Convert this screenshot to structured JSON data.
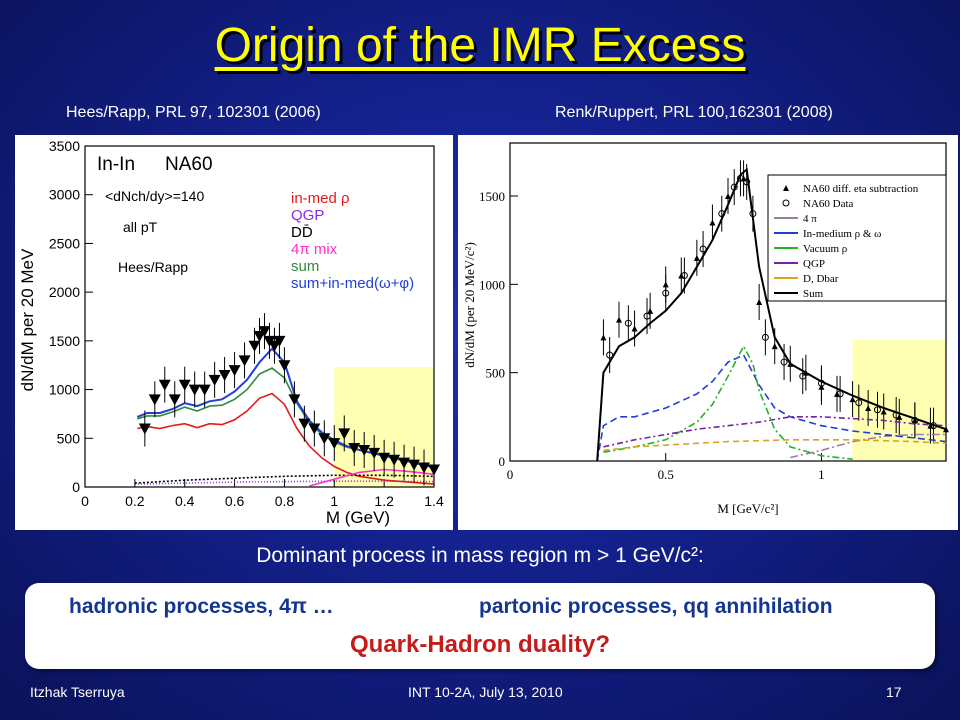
{
  "slide": {
    "title": "Origin of the IMR Excess",
    "ref_left": "Hees/Rapp, PRL 97, 102301 (2006)",
    "ref_right": "Renk/Ruppert, PRL 100,162301 (2008)",
    "subtitle": "Dominant process in mass region m > 1 GeV/c²:",
    "box_left": "hadronic processes, 4π …",
    "box_right": "partonic processes, qq annihilation",
    "box_question": "Quark-Hadron duality?",
    "footer_author": "Itzhak Tserruya",
    "footer_event": "INT 10-2A, July 13, 2010",
    "footer_page": "17"
  },
  "chart_data": [
    {
      "type": "line",
      "xlabel": "M (GeV)",
      "ylabel": "dN/dM per 20 MeV",
      "xlim": [
        0,
        1.4
      ],
      "ylim": [
        0,
        3500
      ],
      "x_ticks": [
        0,
        0.2,
        0.4,
        0.6,
        0.8,
        1,
        1.2,
        1.4
      ],
      "y_ticks": [
        0,
        500,
        1000,
        1500,
        2000,
        2500,
        3000,
        3500
      ],
      "annotations": [
        "In-In",
        "NA60",
        "<dNch/dy>=140",
        "all pT",
        "Hees/Rapp"
      ],
      "highlight_x": [
        1.0,
        1.4
      ],
      "series": [
        {
          "name": "in-med ρ",
          "color": "#e31a1a",
          "x": [
            0.21,
            0.25,
            0.3,
            0.35,
            0.4,
            0.45,
            0.5,
            0.55,
            0.6,
            0.65,
            0.7,
            0.75,
            0.8,
            0.85,
            0.9,
            0.95,
            1.0,
            1.05,
            1.1,
            1.15,
            1.2,
            1.3,
            1.4
          ],
          "y": [
            600,
            620,
            600,
            630,
            650,
            610,
            650,
            640,
            690,
            780,
            910,
            960,
            850,
            600,
            420,
            300,
            210,
            150,
            110,
            90,
            70,
            50,
            30
          ]
        },
        {
          "name": "QGP",
          "color": "#8a2be2",
          "x": [
            0.2,
            0.4,
            0.6,
            0.8,
            1.0,
            1.2,
            1.4
          ],
          "y": [
            30,
            40,
            50,
            55,
            60,
            60,
            55
          ]
        },
        {
          "name": "DD̄",
          "color": "#000000",
          "x": [
            0.2,
            0.4,
            0.6,
            0.8,
            1.0,
            1.2,
            1.4
          ],
          "y": [
            40,
            70,
            90,
            110,
            120,
            120,
            110
          ]
        },
        {
          "name": "4π mix",
          "color": "#ff33cc",
          "x": [
            0.9,
            1.0,
            1.1,
            1.2,
            1.3,
            1.4
          ],
          "y": [
            10,
            80,
            150,
            180,
            160,
            130
          ]
        },
        {
          "name": "sum",
          "color": "#2e8b3e",
          "x": [
            0.21,
            0.25,
            0.3,
            0.35,
            0.4,
            0.45,
            0.5,
            0.55,
            0.6,
            0.65,
            0.7,
            0.75,
            0.8,
            0.85,
            0.9,
            0.95,
            1.0,
            1.05,
            1.1,
            1.15,
            1.2,
            1.3,
            1.4
          ],
          "y": [
            700,
            730,
            730,
            770,
            820,
            780,
            830,
            840,
            900,
            1000,
            1160,
            1220,
            1120,
            860,
            660,
            540,
            460,
            410,
            380,
            350,
            320,
            260,
            200
          ]
        },
        {
          "name": "sum+in-med(ω+φ)",
          "color": "#1f3fd6",
          "x": [
            0.21,
            0.25,
            0.3,
            0.35,
            0.4,
            0.45,
            0.5,
            0.55,
            0.6,
            0.65,
            0.7,
            0.75,
            0.8,
            0.85,
            0.9,
            0.95,
            1.0,
            1.05,
            1.1,
            1.15,
            1.2,
            1.3,
            1.4
          ],
          "y": [
            720,
            760,
            760,
            800,
            860,
            830,
            880,
            900,
            980,
            1100,
            1280,
            1420,
            1280,
            880,
            680,
            560,
            480,
            420,
            380,
            350,
            320,
            260,
            200
          ]
        },
        {
          "name": "data",
          "color": "#000000",
          "marker": "triangle-down",
          "x": [
            0.24,
            0.28,
            0.32,
            0.36,
            0.4,
            0.44,
            0.48,
            0.52,
            0.56,
            0.6,
            0.64,
            0.68,
            0.7,
            0.72,
            0.74,
            0.76,
            0.78,
            0.8,
            0.84,
            0.88,
            0.92,
            0.96,
            1.0,
            1.04,
            1.08,
            1.12,
            1.16,
            1.2,
            1.24,
            1.28,
            1.32,
            1.36,
            1.4
          ],
          "y": [
            600,
            900,
            1050,
            900,
            1050,
            1000,
            1000,
            1100,
            1150,
            1200,
            1300,
            1450,
            1550,
            1600,
            1500,
            1450,
            1500,
            1250,
            900,
            650,
            600,
            500,
            450,
            550,
            400,
            380,
            350,
            300,
            280,
            250,
            230,
            200,
            180
          ]
        }
      ]
    },
    {
      "type": "line",
      "xlabel": "M [GeV/c²]",
      "ylabel": "dN/dM (per 20 MeV/c²)",
      "xlim": [
        0,
        1.4
      ],
      "ylim": [
        0,
        1800
      ],
      "x_ticks": [
        0,
        0.5,
        1
      ],
      "y_ticks": [
        0,
        500,
        1000,
        1500
      ],
      "highlight_x": [
        1.1,
        1.4
      ],
      "series": [
        {
          "name": "NA60 diff. eta subtraction",
          "color": "#000000",
          "marker": "triangle",
          "x": [
            0.3,
            0.35,
            0.4,
            0.45,
            0.5,
            0.55,
            0.6,
            0.65,
            0.7,
            0.75,
            0.8,
            0.85,
            0.9,
            0.95,
            1.0,
            1.05,
            1.1,
            1.15,
            1.2,
            1.25,
            1.3,
            1.35,
            1.4
          ],
          "y": [
            700,
            800,
            750,
            850,
            1000,
            1050,
            1150,
            1350,
            1500,
            1600,
            900,
            650,
            550,
            500,
            420,
            380,
            350,
            300,
            280,
            250,
            230,
            200,
            180
          ]
        },
        {
          "name": "NA60 Data",
          "color": "#000000",
          "marker": "circle",
          "x": [
            0.32,
            0.38,
            0.44,
            0.5,
            0.56,
            0.62,
            0.68,
            0.72,
            0.74,
            0.76,
            0.78,
            0.82,
            0.88,
            0.94,
            1.0,
            1.06,
            1.12,
            1.18,
            1.24,
            1.3,
            1.36
          ],
          "y": [
            600,
            780,
            820,
            950,
            1050,
            1200,
            1400,
            1550,
            1600,
            1580,
            1400,
            700,
            560,
            480,
            440,
            380,
            330,
            290,
            260,
            230,
            200
          ]
        },
        {
          "name": "4 π",
          "color": "#9a7fa0",
          "x": [
            0.9,
            1.0,
            1.1,
            1.2,
            1.3,
            1.4
          ],
          "y": [
            20,
            60,
            110,
            140,
            150,
            150
          ]
        },
        {
          "name": "In-medium ρ & ω",
          "color": "#1f3fd6",
          "x": [
            0.28,
            0.3,
            0.35,
            0.4,
            0.5,
            0.6,
            0.65,
            0.7,
            0.75,
            0.8,
            0.85,
            0.9,
            1.0,
            1.1,
            1.2,
            1.3,
            1.4
          ],
          "y": [
            0,
            200,
            250,
            250,
            300,
            380,
            450,
            560,
            600,
            430,
            300,
            250,
            200,
            170,
            150,
            130,
            110
          ]
        },
        {
          "name": "Vacuum ρ",
          "color": "#22b422",
          "x": [
            0.3,
            0.4,
            0.5,
            0.6,
            0.65,
            0.7,
            0.75,
            0.78,
            0.8,
            0.85,
            0.9,
            1.0,
            1.1
          ],
          "y": [
            50,
            80,
            120,
            220,
            320,
            480,
            650,
            550,
            400,
            180,
            80,
            30,
            10
          ]
        },
        {
          "name": "QGP",
          "color": "#7a1fa8",
          "x": [
            0.3,
            0.4,
            0.5,
            0.6,
            0.7,
            0.8,
            0.9,
            1.0,
            1.1,
            1.2,
            1.3,
            1.4
          ],
          "y": [
            80,
            120,
            150,
            180,
            200,
            220,
            250,
            250,
            240,
            230,
            210,
            200
          ]
        },
        {
          "name": "D, Dbar",
          "color": "#e0a020",
          "x": [
            0.3,
            0.4,
            0.5,
            0.6,
            0.7,
            0.8,
            0.9,
            1.0,
            1.1,
            1.2,
            1.3,
            1.4
          ],
          "y": [
            60,
            80,
            90,
            100,
            110,
            115,
            120,
            120,
            120,
            115,
            110,
            100
          ]
        },
        {
          "name": "Sum",
          "color": "#000000",
          "x": [
            0.28,
            0.3,
            0.35,
            0.4,
            0.45,
            0.5,
            0.55,
            0.6,
            0.65,
            0.7,
            0.74,
            0.76,
            0.8,
            0.85,
            0.9,
            1.0,
            1.1,
            1.2,
            1.3,
            1.4
          ],
          "y": [
            0,
            500,
            650,
            700,
            780,
            850,
            950,
            1100,
            1250,
            1450,
            1620,
            1650,
            1100,
            700,
            550,
            450,
            370,
            300,
            240,
            180
          ]
        }
      ]
    }
  ]
}
